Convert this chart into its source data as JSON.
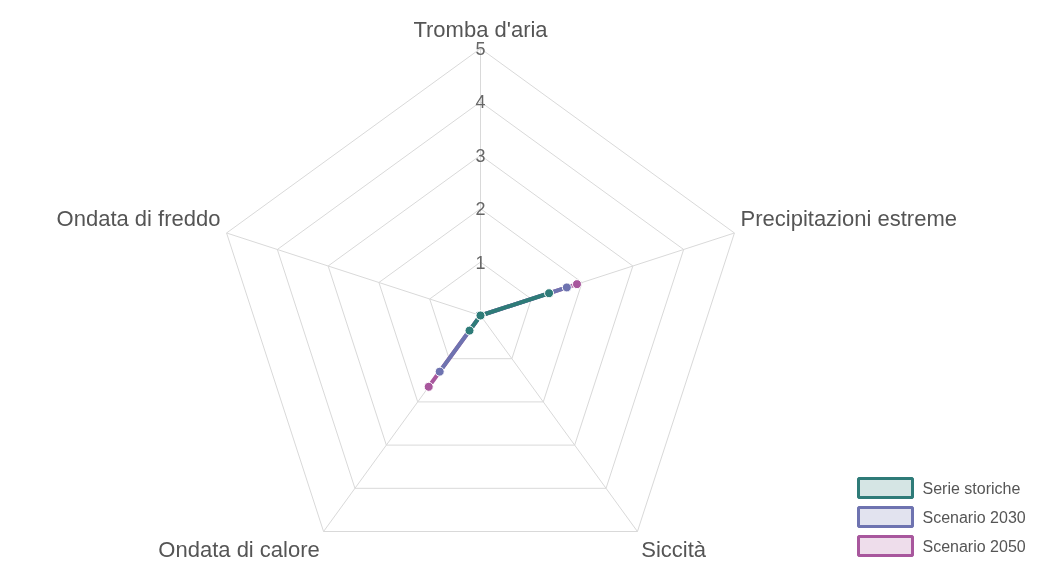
{
  "chart_data": {
    "type": "radar",
    "categories": [
      "Tromba d'aria",
      "Precipitazioni estreme",
      "Siccità",
      "Ondata di calore",
      "Ondata di freddo"
    ],
    "ylim": [
      0,
      5
    ],
    "yticks": [
      1,
      2,
      3,
      4,
      5
    ],
    "grid": true,
    "legend": "bottom right",
    "marker": "circle",
    "series": [
      {
        "name": "Serie storiche",
        "color": "#2e7b78",
        "values": [
          0,
          1.35,
          0,
          0.35,
          0
        ]
      },
      {
        "name": "Scenario 2030",
        "color": "#6e73b0",
        "values": [
          0,
          1.7,
          0,
          1.3,
          0
        ]
      },
      {
        "name": "Scenario 2050",
        "color": "#a8579d",
        "values": [
          0,
          1.9,
          0,
          1.65,
          0
        ]
      }
    ]
  }
}
